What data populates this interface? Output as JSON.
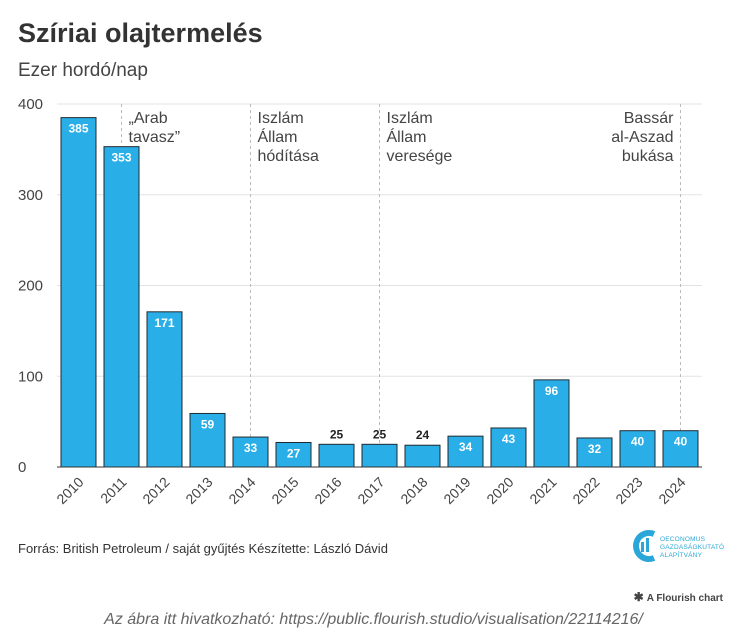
{
  "header": {
    "title": "Szíriai olajtermelés",
    "subtitle": "Ezer hordó/nap"
  },
  "chart_data": {
    "type": "bar",
    "categories": [
      "2010",
      "2011",
      "2012",
      "2013",
      "2014",
      "2015",
      "2016",
      "2017",
      "2018",
      "2019",
      "2020",
      "2021",
      "2022",
      "2023",
      "2024"
    ],
    "values": [
      385,
      353,
      171,
      59,
      33,
      27,
      25,
      25,
      24,
      34,
      43,
      96,
      32,
      40,
      40
    ],
    "yticks": [
      0,
      100,
      200,
      300,
      400
    ],
    "ylim": [
      0,
      400
    ],
    "grid": true,
    "bar_color": "#2aaee8",
    "annotations": [
      {
        "year": "2011",
        "lines": [
          "„Arab",
          "tavasz”"
        ]
      },
      {
        "year": "2014",
        "lines": [
          "Iszlám",
          "Állam",
          "hódítása"
        ]
      },
      {
        "year": "2017",
        "lines": [
          "Iszlám",
          "Állam",
          "veresége"
        ]
      },
      {
        "year": "2024",
        "lines": [
          "Bassár",
          "al-Aszad",
          "bukása"
        ]
      }
    ]
  },
  "footer": {
    "source": "Forrás: British Petroleum / saját gyűjtés Készítette: László Dávid",
    "logo_lines": [
      "OECONOMUS",
      "GAZDASÁGKUTATÓ",
      "ALAPÍTVÁNY"
    ],
    "flourish": "A Flourish chart",
    "link": "Az ábra itt hivatkozható: https://public.flourish.studio/visualisation/22114216/"
  }
}
